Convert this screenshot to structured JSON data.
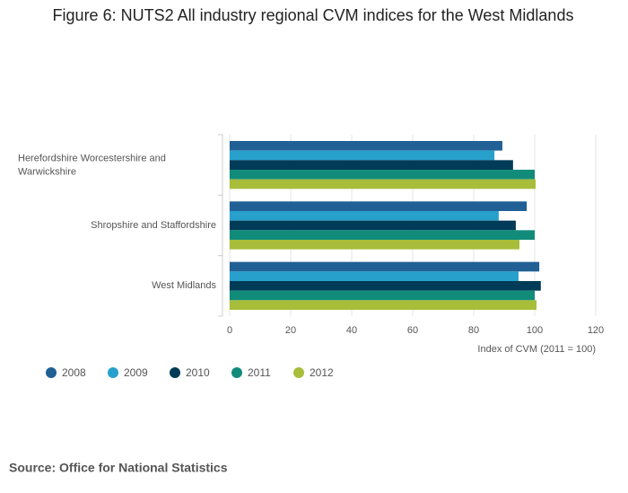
{
  "chart_data": {
    "type": "hbar",
    "title": "Figure 6: NUTS2 All industry regional CVM indices for the West Midlands",
    "categories": [
      "Herefordshire Worcestershire and Warwickshire",
      "Shropshire and Staffordshire",
      "West Midlands"
    ],
    "series": [
      {
        "name": "2008",
        "color": "#206095",
        "values": [
          89.4,
          97.4,
          101.5
        ]
      },
      {
        "name": "2009",
        "color": "#27a0cc",
        "values": [
          86.8,
          88.2,
          94.7
        ]
      },
      {
        "name": "2010",
        "color": "#003c57",
        "values": [
          92.9,
          93.8,
          102
        ]
      },
      {
        "name": "2011",
        "color": "#118c7b",
        "values": [
          100,
          100,
          100
        ]
      },
      {
        "name": "2012",
        "color": "#a8bd3a",
        "values": [
          100.3,
          95,
          100.6
        ]
      }
    ],
    "xlim": [
      0,
      120
    ],
    "xticks": [
      0,
      20,
      40,
      60,
      80,
      100,
      120
    ],
    "x_label": "Index of CVM (2011 = 100)",
    "grid": true,
    "source": "Source: Office for National Statistics"
  }
}
